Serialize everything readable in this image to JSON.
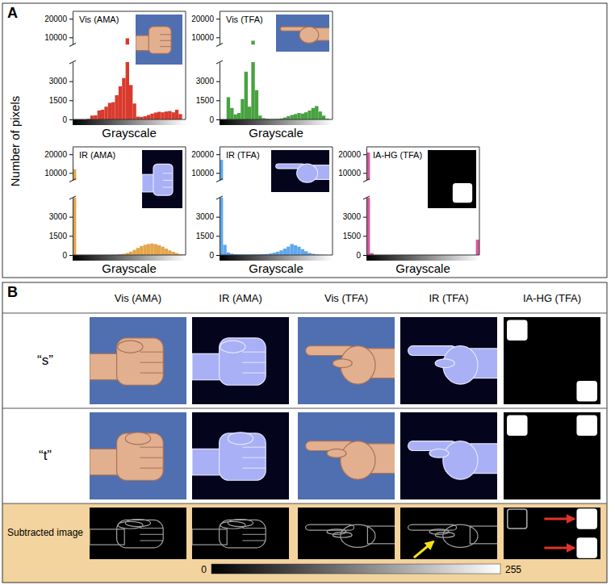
{
  "chart_data": [
    {
      "type": "histogram",
      "title": "Vis (AMA)",
      "x_label": "Grayscale",
      "bins": [
        0,
        8,
        16,
        24,
        32,
        40,
        48,
        56,
        64,
        72,
        80,
        88,
        96,
        104,
        112,
        120,
        128,
        136,
        144,
        152,
        160,
        168,
        176,
        184,
        192,
        200,
        208,
        216,
        224,
        232,
        240,
        248,
        256
      ],
      "values": [
        0,
        0,
        0,
        0,
        40,
        300,
        320,
        700,
        760,
        1000,
        1300,
        1350,
        1900,
        2600,
        3250,
        9500,
        2700,
        1250,
        220,
        200,
        250,
        350,
        450,
        540,
        600,
        560,
        620,
        660,
        560,
        760,
        420,
        0
      ],
      "color": "#d93a2e",
      "xlim": [
        0,
        256
      ],
      "ylim": [
        0,
        24000
      ],
      "y_break": [
        4500,
        6000
      ],
      "yticks": [
        0,
        1500,
        3000,
        10000,
        20000
      ],
      "tick_labels": "y"
    },
    {
      "type": "histogram",
      "title": "Vis (TFA)",
      "x_label": "Grayscale",
      "bins": [
        0,
        8,
        16,
        24,
        32,
        40,
        48,
        56,
        64,
        72,
        80,
        88,
        96,
        104,
        112,
        120,
        128,
        136,
        144,
        152,
        160,
        168,
        176,
        184,
        192,
        200,
        208,
        216,
        224,
        232,
        240,
        248,
        256
      ],
      "values": [
        0,
        0,
        1750,
        900,
        400,
        500,
        1600,
        3750,
        1000,
        8200,
        2300,
        300,
        100,
        50,
        30,
        30,
        40,
        80,
        150,
        250,
        350,
        420,
        500,
        460,
        560,
        700,
        900,
        1050,
        620,
        300,
        60,
        0
      ],
      "color": "#47a23f",
      "xlim": [
        0,
        256
      ],
      "ylim": [
        0,
        24000
      ],
      "y_break": [
        4500,
        6000
      ],
      "yticks": [
        0,
        1500,
        3000,
        10000,
        20000
      ],
      "tick_labels": "y"
    },
    {
      "type": "histogram",
      "title": "IR (AMA)",
      "x_label": "Grayscale",
      "bins": [
        0,
        8,
        16,
        24,
        32,
        40,
        48,
        56,
        64,
        72,
        80,
        88,
        96,
        104,
        112,
        120,
        128,
        136,
        144,
        152,
        160,
        168,
        176,
        184,
        192,
        200,
        208,
        216,
        224,
        232,
        240,
        248,
        256
      ],
      "values": [
        12000,
        0,
        0,
        0,
        0,
        0,
        0,
        0,
        0,
        0,
        0,
        10,
        20,
        50,
        90,
        160,
        260,
        400,
        550,
        700,
        800,
        860,
        900,
        850,
        760,
        650,
        500,
        360,
        250,
        150,
        60,
        20
      ],
      "color": "#e5a54a",
      "xlim": [
        0,
        256
      ],
      "ylim": [
        0,
        24000
      ],
      "y_break": [
        4500,
        6000
      ],
      "yticks": [
        0,
        1500,
        3000,
        10000,
        20000
      ],
      "tick_labels": "y"
    },
    {
      "type": "histogram",
      "title": "IR (TFA)",
      "x_label": "Grayscale",
      "bins": [
        0,
        8,
        16,
        24,
        32,
        40,
        48,
        56,
        64,
        72,
        80,
        88,
        96,
        104,
        112,
        120,
        128,
        136,
        144,
        152,
        160,
        168,
        176,
        184,
        192,
        200,
        208,
        216,
        224,
        232,
        240,
        248,
        256
      ],
      "values": [
        17000,
        800,
        200,
        100,
        60,
        40,
        30,
        30,
        30,
        40,
        40,
        50,
        60,
        80,
        120,
        180,
        260,
        360,
        500,
        660,
        860,
        760,
        650,
        460,
        300,
        160,
        90,
        40,
        20,
        10,
        0,
        0
      ],
      "color": "#5fa8ec",
      "xlim": [
        0,
        256
      ],
      "ylim": [
        0,
        24000
      ],
      "y_break": [
        4500,
        6000
      ],
      "yticks": [
        0,
        1500,
        3000,
        10000,
        20000
      ],
      "tick_labels": "y"
    },
    {
      "type": "histogram",
      "title": "IA-HG (TFA)",
      "x_label": "Grayscale",
      "bins": [
        0,
        8,
        16,
        24,
        32,
        40,
        48,
        56,
        64,
        72,
        80,
        88,
        96,
        104,
        112,
        120,
        128,
        136,
        144,
        152,
        160,
        168,
        176,
        184,
        192,
        200,
        208,
        216,
        224,
        232,
        240,
        248,
        256
      ],
      "values": [
        21000,
        150,
        0,
        0,
        0,
        0,
        0,
        0,
        0,
        0,
        0,
        0,
        0,
        0,
        0,
        0,
        0,
        0,
        0,
        0,
        0,
        0,
        0,
        0,
        0,
        0,
        0,
        0,
        0,
        0,
        0,
        1200
      ],
      "color": "#d9579d",
      "xlim": [
        0,
        256
      ],
      "ylim": [
        0,
        24000
      ],
      "y_break": [
        4500,
        6000
      ],
      "yticks": [
        0,
        1500,
        3000,
        10000,
        20000
      ],
      "tick_labels": "y"
    }
  ],
  "y_label": "Number of pixels",
  "panel_labels": [
    "A",
    "B"
  ],
  "panel_b": {
    "columns": [
      "Vis (AMA)",
      "IR (AMA)",
      "Vis (TFA)",
      "IR (TFA)",
      "IA-HG (TFA)"
    ],
    "rows": [
      "“s”",
      "“t”",
      "Subtracted image"
    ],
    "colorbar": {
      "range": [
        0,
        255
      ],
      "ticks": [
        0,
        255
      ]
    }
  }
}
